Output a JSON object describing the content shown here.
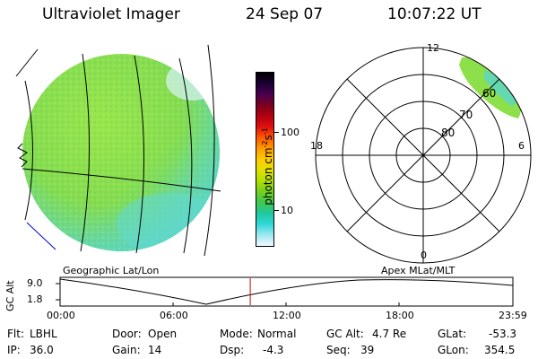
{
  "header": {
    "instrument": "Ultraviolet Imager",
    "date": "24 Sep 07",
    "time": "10:07:22 UT"
  },
  "colorbar": {
    "unit_main": "photon cm",
    "unit_exp1": "-2",
    "unit_s": "s",
    "unit_exp2": "-1",
    "ticks": [
      "100",
      "10"
    ],
    "colors": [
      "#000000",
      "#1a0033",
      "#4b0050",
      "#7a0020",
      "#b00010",
      "#e01010",
      "#ff5a00",
      "#ff9a00",
      "#ffcc00",
      "#e0e000",
      "#b0e000",
      "#70d020",
      "#40c850",
      "#20c8a0",
      "#30d8d8",
      "#a0e8f0",
      "#f4f8fc"
    ]
  },
  "polar": {
    "mlt_labels": {
      "top": "12",
      "left": "18",
      "right": "6",
      "bottom": "0"
    },
    "lat_labels": [
      "60",
      "70",
      "80"
    ]
  },
  "footer": {
    "left_caption": "Geographic Lat/Lon",
    "right_caption": "Apex MLat/MLT",
    "alt_axis_label": "GC Alt",
    "alt_max": "9.0",
    "alt_min": "1.8",
    "time_ticks": [
      "00:00",
      "06:00",
      "12:00",
      "18:00",
      "23:59"
    ],
    "current_time_fraction": 0.42
  },
  "info": {
    "flt_label": "Flt:",
    "flt_value": "LBHL",
    "ip_label": "IP:",
    "ip_value": "36.0",
    "door_label": "Door:",
    "door_value": "Open",
    "gain_label": "Gain:",
    "gain_value": "14",
    "mode_label": "Mode:",
    "mode_value": "Normal",
    "dsp_label": "Dsp:",
    "dsp_value": "-4.3",
    "gcalt_label": "GC Alt:",
    "gcalt_value": "4.7 Re",
    "seq_label": "Seq:",
    "seq_value": "39",
    "glat_label": "GLat:",
    "glat_value": "-53.3",
    "glon_label": "GLon:",
    "glon_value": "354.5"
  },
  "theme": {
    "globe_green": "#8ee04a",
    "globe_cyan": "#5ad6c8",
    "marker_red": "#cc0000",
    "coast_blue": "#0000cc"
  }
}
